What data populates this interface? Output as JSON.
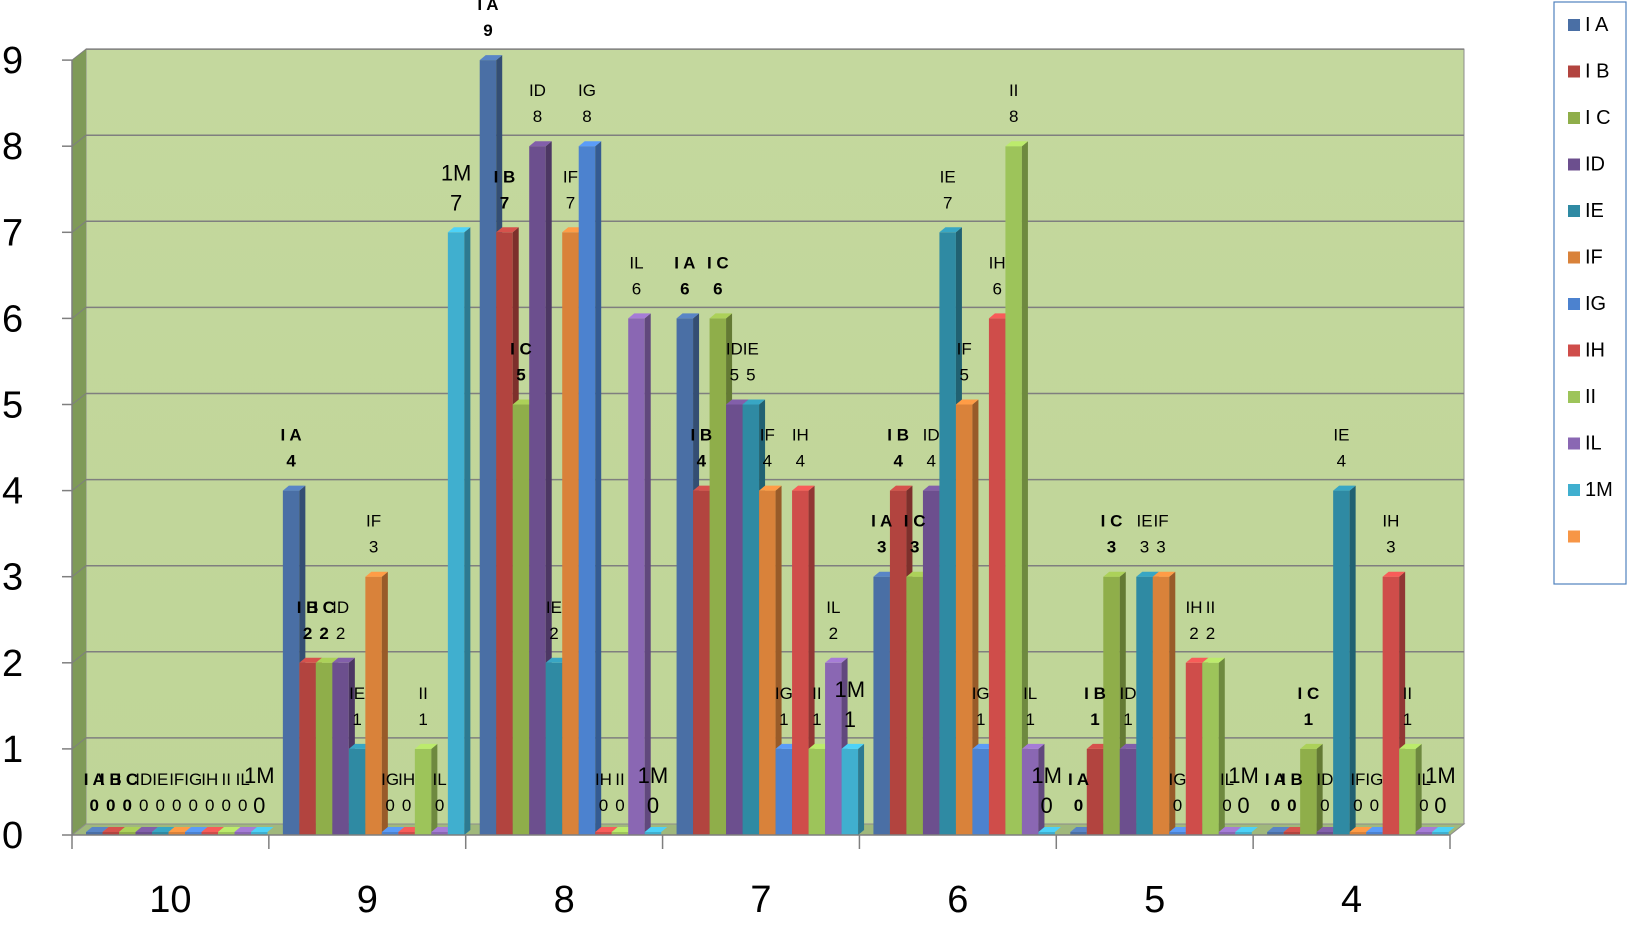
{
  "chart_data": {
    "type": "bar",
    "categories": [
      "10",
      "9",
      "8",
      "7",
      "6",
      "5",
      "4"
    ],
    "ylim": [
      0,
      9
    ],
    "yticks": [
      "0",
      "1",
      "2",
      "3",
      "4",
      "5",
      "6",
      "7",
      "8",
      "9"
    ],
    "grid": true,
    "legend_position": "right",
    "series": [
      {
        "name": "I A",
        "color": "#4a6fa5",
        "values": [
          0,
          4,
          9,
          6,
          3,
          0,
          0
        ]
      },
      {
        "name": "I B",
        "color": "#b2443f",
        "values": [
          0,
          2,
          7,
          4,
          4,
          1,
          0
        ]
      },
      {
        "name": "I C",
        "color": "#8fae4a",
        "values": [
          0,
          2,
          5,
          6,
          3,
          3,
          1
        ]
      },
      {
        "name": "ID",
        "color": "#6c4f8e",
        "values": [
          0,
          2,
          8,
          5,
          4,
          1,
          0
        ]
      },
      {
        "name": "IE",
        "color": "#2f8aa3",
        "values": [
          0,
          1,
          2,
          5,
          7,
          3,
          4
        ]
      },
      {
        "name": "IF",
        "color": "#d9823a",
        "values": [
          0,
          3,
          7,
          4,
          5,
          3,
          0
        ]
      },
      {
        "name": "IG",
        "color": "#4c82cf",
        "values": [
          0,
          0,
          8,
          1,
          1,
          0,
          0
        ]
      },
      {
        "name": "IH",
        "color": "#cf4d4a",
        "values": [
          0,
          0,
          0,
          4,
          6,
          2,
          3
        ]
      },
      {
        "name": "II",
        "color": "#9dc45a",
        "values": [
          0,
          1,
          0,
          1,
          8,
          2,
          1
        ]
      },
      {
        "name": "IL",
        "color": "#8a67b3",
        "values": [
          0,
          0,
          6,
          2,
          1,
          0,
          0
        ]
      },
      {
        "name": "1M",
        "color": "#40afcf",
        "values": [
          0,
          7,
          0,
          1,
          0,
          0,
          0
        ]
      },
      {
        "name": "",
        "color": "#f79646",
        "values": [
          null,
          null,
          null,
          null,
          null,
          null,
          null
        ]
      }
    ]
  }
}
